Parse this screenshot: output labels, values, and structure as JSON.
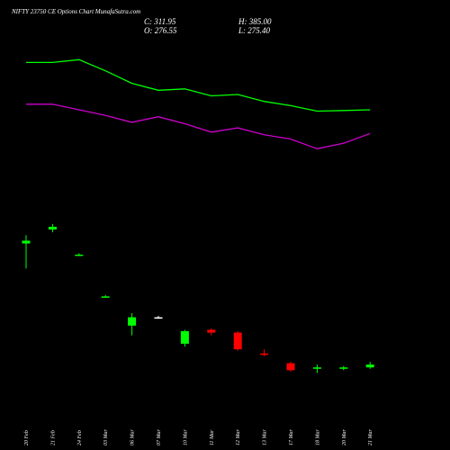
{
  "header": {
    "title": "NIFTY 23750  CE Options  Chart MunafaSutra.com",
    "close": "C: 311.95",
    "open": "O: 276.55",
    "high": "H: 385.00",
    "low": "L: 275.40"
  },
  "chart_data": {
    "type": "candlestick",
    "title": "NIFTY 23750  CE Options  Chart MunafaSutra.com",
    "categories": [
      "20 Feb",
      "21 Feb",
      "24 Feb",
      "03 Mar",
      "06 Mar",
      "07 Mar",
      "10 Mar",
      "11 Mar",
      "12 Mar",
      "13 Mar",
      "17 Mar",
      "18 Mar",
      "20 Mar",
      "21 Mar"
    ],
    "candles": [
      {
        "open": 176,
        "high": 182,
        "low": 158,
        "close": 178,
        "color": "#00ff00"
      },
      {
        "open": 186,
        "high": 190,
        "low": 184,
        "close": 188,
        "color": "#00ff00"
      },
      {
        "open": 168,
        "high": 169,
        "low": 167,
        "close": 168,
        "color": "#00ff00"
      },
      {
        "open": 138,
        "high": 139,
        "low": 137,
        "close": 138,
        "color": "#00ff00"
      },
      {
        "open": 117,
        "high": 126,
        "low": 110,
        "close": 123,
        "color": "#00ff00"
      },
      {
        "open": 123,
        "high": 124,
        "low": 122,
        "close": 123,
        "color": "#ffffff"
      },
      {
        "open": 104,
        "high": 114,
        "low": 102,
        "close": 113,
        "color": "#00ff00"
      },
      {
        "open": 114,
        "high": 115,
        "low": 110,
        "close": 112,
        "color": "#ff0000"
      },
      {
        "open": 112,
        "high": 113,
        "low": 99,
        "close": 100,
        "color": "#ff0000"
      },
      {
        "open": 97,
        "high": 100,
        "low": 95,
        "close": 96,
        "color": "#ff0000"
      },
      {
        "open": 90,
        "high": 91,
        "low": 84,
        "close": 85,
        "color": "#ff0000"
      },
      {
        "open": 86,
        "high": 89,
        "low": 83,
        "close": 87,
        "color": "#00ff00"
      },
      {
        "open": 86,
        "high": 88,
        "low": 85,
        "close": 87,
        "color": "#00ff00"
      },
      {
        "open": 87,
        "high": 91,
        "low": 86,
        "close": 89,
        "color": "#00ff00"
      }
    ],
    "lines": [
      {
        "color": "#00ff00",
        "values": [
          306,
          306,
          308,
          300,
          291,
          286,
          287,
          282,
          283,
          278,
          275,
          271,
          271.5,
          272
        ]
      },
      {
        "color": "#cc00cc",
        "values": [
          276,
          276,
          272,
          268,
          263,
          267,
          262,
          256,
          259,
          254,
          251,
          244,
          248,
          255
        ]
      }
    ]
  }
}
